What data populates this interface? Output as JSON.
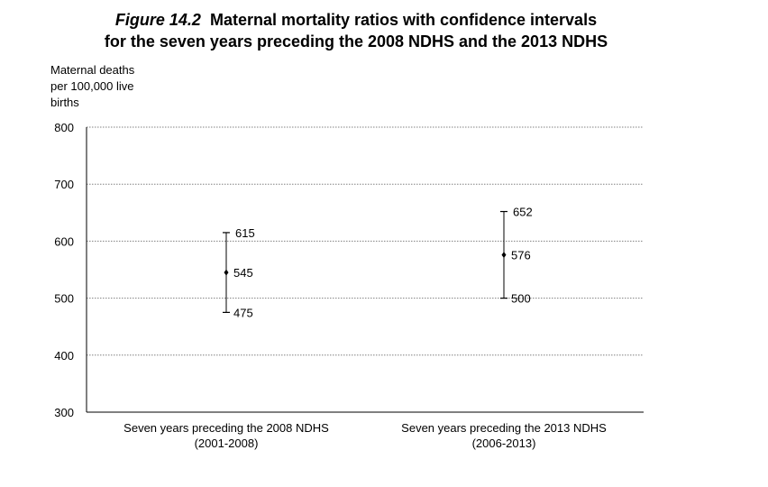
{
  "title": {
    "figure_label": "Figure 14.2",
    "line1_rest": "Maternal mortality ratios with confidence intervals",
    "line2": "for the seven years preceding the 2008 NDHS and the 2013 NDHS"
  },
  "chart_data": {
    "type": "scatter",
    "ylabel": [
      "Maternal deaths",
      "per 100,000 live",
      "births"
    ],
    "ylim": [
      300,
      800
    ],
    "yticks": [
      "300",
      "400",
      "500",
      "600",
      "700",
      "800"
    ],
    "grid": true,
    "categories": [
      {
        "line1": "Seven years preceding the 2008 NDHS",
        "line2": "(2001-2008)"
      },
      {
        "line1": "Seven years preceding the 2013 NDHS",
        "line2": "(2006-2013)"
      }
    ],
    "points": [
      {
        "lower": 475,
        "estimate": 545,
        "upper": 615
      },
      {
        "lower": 500,
        "estimate": 576,
        "upper": 652
      }
    ],
    "value_labels": [
      {
        "lower": "475",
        "estimate": "545",
        "upper": "615"
      },
      {
        "lower": "500",
        "estimate": "576",
        "upper": "652"
      }
    ],
    "colors": {
      "axis": "#000000",
      "grid": "#808080",
      "marker": "#000000"
    }
  }
}
